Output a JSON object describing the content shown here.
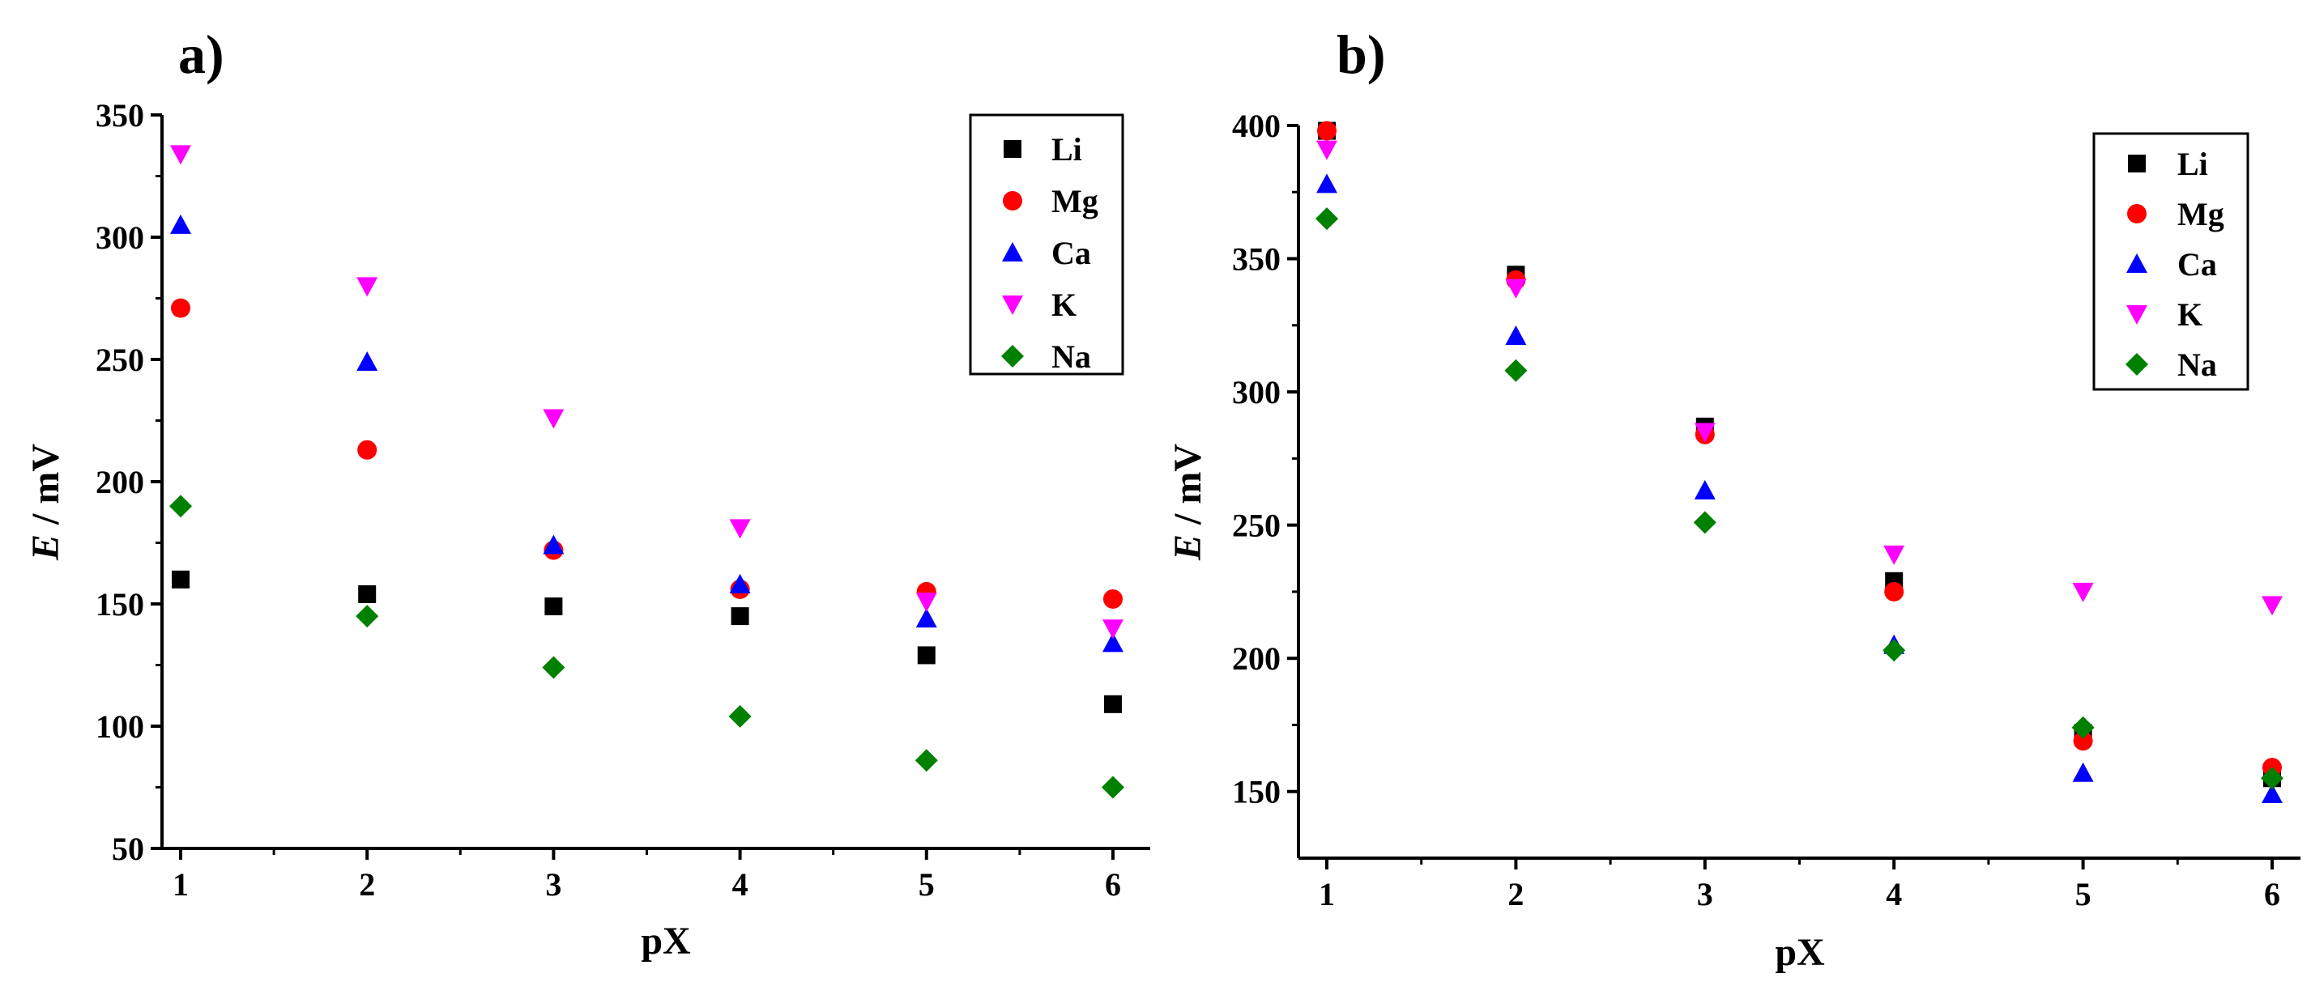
{
  "chart_data": [
    {
      "type": "scatter",
      "panel_label": "a)",
      "xlabel": "pX",
      "ylabel_italic": "E",
      "ylabel_rest": " / mV",
      "xlim": [
        0.9,
        6.2
      ],
      "ylim": [
        50,
        350
      ],
      "xticks": [
        1,
        2,
        3,
        4,
        5,
        6
      ],
      "yticks": [
        50,
        100,
        150,
        200,
        250,
        300,
        350
      ],
      "legend_position": "top-right",
      "series": [
        {
          "name": "Li",
          "marker": "square",
          "color": "#000000",
          "x": [
            1,
            2,
            3,
            4,
            5,
            6
          ],
          "y": [
            160,
            154,
            149,
            145,
            129,
            109
          ]
        },
        {
          "name": "Mg",
          "marker": "circle",
          "color": "#ff0000",
          "x": [
            1,
            2,
            3,
            4,
            5,
            6
          ],
          "y": [
            271,
            213,
            172,
            156,
            155,
            152
          ]
        },
        {
          "name": "Ca",
          "marker": "triangle-up",
          "color": "#0000ff",
          "x": [
            1,
            2,
            3,
            4,
            5,
            6
          ],
          "y": [
            305,
            249,
            174,
            158,
            144,
            134
          ]
        },
        {
          "name": "K",
          "marker": "triangle-down",
          "color": "#ff00ff",
          "x": [
            1,
            2,
            3,
            4,
            5,
            6
          ],
          "y": [
            334,
            280,
            226,
            181,
            151,
            140
          ]
        },
        {
          "name": "Na",
          "marker": "diamond",
          "color": "#008000",
          "x": [
            1,
            2,
            3,
            4,
            5,
            6
          ],
          "y": [
            190,
            145,
            124,
            104,
            86,
            75
          ]
        }
      ]
    },
    {
      "type": "scatter",
      "panel_label": "b)",
      "xlabel": "pX",
      "ylabel_italic": "E",
      "ylabel_rest": " / mV",
      "xlim": [
        0.85,
        6.15
      ],
      "ylim": [
        125,
        400
      ],
      "xticks": [
        1,
        2,
        3,
        4,
        5,
        6
      ],
      "yticks": [
        150,
        200,
        250,
        300,
        350,
        400
      ],
      "legend_position": "top-right",
      "series": [
        {
          "name": "Li",
          "marker": "square",
          "color": "#000000",
          "x": [
            1,
            2,
            3,
            4,
            5,
            6
          ],
          "y": [
            398,
            344,
            287,
            229,
            172,
            155
          ]
        },
        {
          "name": "Mg",
          "marker": "circle",
          "color": "#ff0000",
          "x": [
            1,
            2,
            3,
            4,
            5,
            6
          ],
          "y": [
            398,
            342,
            284,
            225,
            169,
            159
          ]
        },
        {
          "name": "Ca",
          "marker": "triangle-up",
          "color": "#0000ff",
          "x": [
            1,
            2,
            3,
            4,
            5,
            6
          ],
          "y": [
            378,
            321,
            263,
            205,
            157,
            149
          ]
        },
        {
          "name": "K",
          "marker": "triangle-down",
          "color": "#ff00ff",
          "x": [
            1,
            2,
            3,
            4,
            5,
            6
          ],
          "y": [
            391,
            339,
            285,
            239,
            225,
            220
          ]
        },
        {
          "name": "Na",
          "marker": "diamond",
          "color": "#008000",
          "x": [
            1,
            2,
            3,
            4,
            5,
            6
          ],
          "y": [
            365,
            308,
            251,
            203,
            174,
            155
          ]
        }
      ]
    }
  ]
}
